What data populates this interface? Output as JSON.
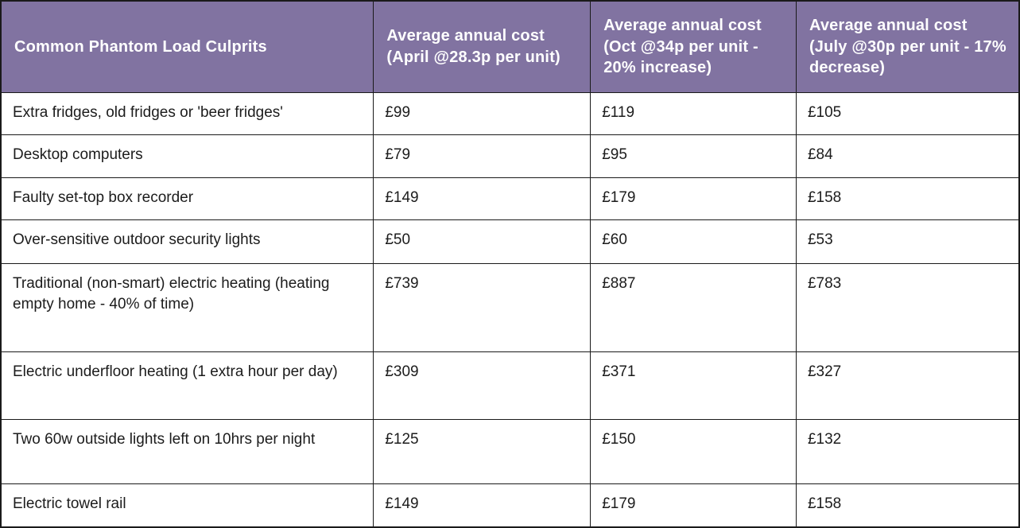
{
  "colors": {
    "header_bg": "#8173A1",
    "header_text": "#FFFFFF",
    "body_bg": "#FFFFFF",
    "body_text": "#1C1C1C",
    "border": "#1A1A1A"
  },
  "table": {
    "headers": [
      "Common Phantom Load Culprits",
      "Average annual cost (April @28.3p per unit)",
      "Average annual cost (Oct @34p per unit -  20% increase)",
      "Average annual cost (July @30p per unit - 17% decrease)"
    ],
    "rows": [
      {
        "cells": [
          "Extra fridges, old fridges or 'beer fridges'",
          "£99",
          "£119",
          "£105"
        ]
      },
      {
        "cells": [
          "Desktop computers",
          "£79",
          "£95",
          "£84"
        ]
      },
      {
        "cells": [
          "Faulty set-top box recorder",
          "£149",
          "£179",
          "£158"
        ]
      },
      {
        "cells": [
          "Over-sensitive outdoor security lights",
          "£50",
          "£60",
          "£53"
        ]
      },
      {
        "cells": [
          "Traditional (non-smart) electric heating (heating empty home - 40% of time)",
          "£739",
          "£887",
          "£783"
        ]
      },
      {
        "cells": [
          "Electric underfloor heating (1 extra hour per day)",
          "£309",
          "£371",
          "£327"
        ]
      },
      {
        "cells": [
          "Two 60w outside lights left on 10hrs per night",
          "£125",
          "£150",
          "£132"
        ]
      },
      {
        "cells": [
          "Electric towel rail",
          "£149",
          "£179",
          "£158"
        ]
      }
    ]
  },
  "chart_data": {
    "type": "table",
    "title": "Common Phantom Load Culprits",
    "columns": [
      "Common Phantom Load Culprits",
      "Average annual cost (April @28.3p per unit)",
      "Average annual cost (Oct @34p per unit -  20% increase)",
      "Average annual cost (July @30p per unit - 17% decrease)"
    ],
    "categories": [
      "Extra fridges, old fridges or 'beer fridges'",
      "Desktop computers",
      "Faulty set-top box recorder",
      "Over-sensitive outdoor security lights",
      "Traditional (non-smart) electric heating (heating empty home - 40% of time)",
      "Electric underfloor heating (1 extra hour per day)",
      "Two 60w outside lights left on 10hrs per night",
      "Electric towel rail"
    ],
    "series": [
      {
        "name": "Average annual cost (April @28.3p per unit)",
        "values": [
          99,
          79,
          149,
          50,
          739,
          309,
          125,
          149
        ]
      },
      {
        "name": "Average annual cost (Oct @34p per unit - 20% increase)",
        "values": [
          119,
          95,
          179,
          60,
          887,
          371,
          150,
          179
        ]
      },
      {
        "name": "Average annual cost (July @30p per unit - 17% decrease)",
        "values": [
          105,
          84,
          158,
          53,
          783,
          327,
          132,
          158
        ]
      }
    ],
    "currency_symbol": "£"
  }
}
